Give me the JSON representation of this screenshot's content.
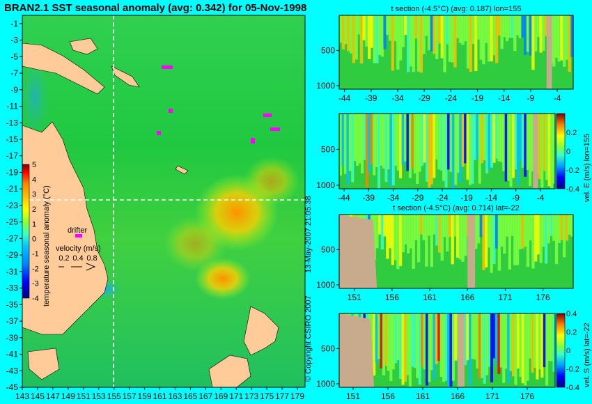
{
  "main_title": "BRAN2.1 SST seasonal anomaly (avg: 0.342) for 05-Nov-1998",
  "copyright": "© Copyright CSIRO 2007",
  "timestamp": "13-May-2007 21:05:38",
  "colors": {
    "background": "#00ffff",
    "land": "#ffcc99",
    "missing": "#c8ab8c",
    "drifter": "#ff00ff",
    "colormap": [
      "#000080",
      "#0000ff",
      "#0080ff",
      "#00c0ff",
      "#40ffc0",
      "#80ff40",
      "#ffff00",
      "#ffc000",
      "#ff8000",
      "#ff0000",
      "#800000"
    ]
  },
  "chart_data": [
    {
      "id": "sst_map",
      "type": "heatmap",
      "title": "BRAN2.1 SST seasonal anomaly (avg: 0.342) for 05-Nov-1998",
      "x_ticks": [
        "143",
        "145",
        "147",
        "149",
        "151",
        "153",
        "155",
        "157",
        "159",
        "161",
        "163",
        "165",
        "167",
        "169",
        "171",
        "173",
        "175",
        "177",
        "179"
      ],
      "y_ticks": [
        "-1",
        "-3",
        "-5",
        "-7",
        "-9",
        "-11",
        "-13",
        "-15",
        "-17",
        "-19",
        "-21",
        "-23",
        "-25",
        "-27",
        "-29",
        "-31",
        "-33",
        "-35",
        "-37",
        "-39",
        "-41",
        "-43",
        "-45"
      ],
      "xlim": [
        143,
        180
      ],
      "ylim": [
        -45,
        0
      ],
      "average": 0.342,
      "section_lines": {
        "lon": 155,
        "lat": -22
      },
      "colorbar": {
        "label": "temperature seasonal anomaly (°C)",
        "ticks": [
          "5",
          "4",
          "3",
          "2",
          "1",
          "0",
          "-1",
          "-2",
          "-3",
          "-4"
        ],
        "range": [
          -4,
          5
        ]
      },
      "legend": {
        "drifter_label": "drifter",
        "velocity_label": "velocity (m/s)",
        "velocity_ticks": [
          "0.2",
          "0.4",
          "0.8"
        ]
      }
    },
    {
      "id": "t_section_lon",
      "type": "heatmap",
      "title": "t section (-4.5°C) (avg: 0.187) lon=155",
      "x_ticks": [
        "-44",
        "-39",
        "-34",
        "-29",
        "-24",
        "-19",
        "-14",
        "-9",
        "-4"
      ],
      "y_ticks": [
        "500",
        "1000"
      ],
      "xlim": [
        -45,
        -1
      ],
      "ylim": [
        1050,
        0
      ],
      "average": 0.187
    },
    {
      "id": "vel_e_section",
      "type": "heatmap",
      "title": "",
      "x_ticks": [
        "-44",
        "-39",
        "-34",
        "-29",
        "-24",
        "-19",
        "-14",
        "-9",
        "-4"
      ],
      "y_ticks": [
        "500",
        "1000"
      ],
      "xlim": [
        -45,
        -1
      ],
      "ylim": [
        1050,
        0
      ],
      "colorbar": {
        "label": "vel. E (m/s) lon=155",
        "ticks": [
          "0.2",
          "0",
          "-0.2",
          "-0.4"
        ],
        "range": [
          -0.4,
          0.4
        ]
      }
    },
    {
      "id": "t_section_lat",
      "type": "heatmap",
      "title": "t section (-4.5°C) (avg: 0.714) lat=-22",
      "x_ticks": [
        "151",
        "156",
        "161",
        "166",
        "171",
        "176"
      ],
      "y_ticks": [
        "500",
        "1000"
      ],
      "xlim": [
        149,
        180
      ],
      "ylim": [
        1050,
        0
      ],
      "average": 0.714
    },
    {
      "id": "vel_s_section",
      "type": "heatmap",
      "title": "",
      "x_ticks": [
        "151",
        "156",
        "161",
        "166",
        "171",
        "176"
      ],
      "y_ticks": [
        "500",
        "1000"
      ],
      "xlim": [
        149,
        180
      ],
      "ylim": [
        1050,
        0
      ],
      "colorbar": {
        "label": "vel. S (m/s) lat=-22",
        "ticks": [
          "0.4",
          "0.2",
          "0",
          "-0.2",
          "-0.4"
        ],
        "range": [
          -0.4,
          0.4
        ]
      }
    }
  ]
}
